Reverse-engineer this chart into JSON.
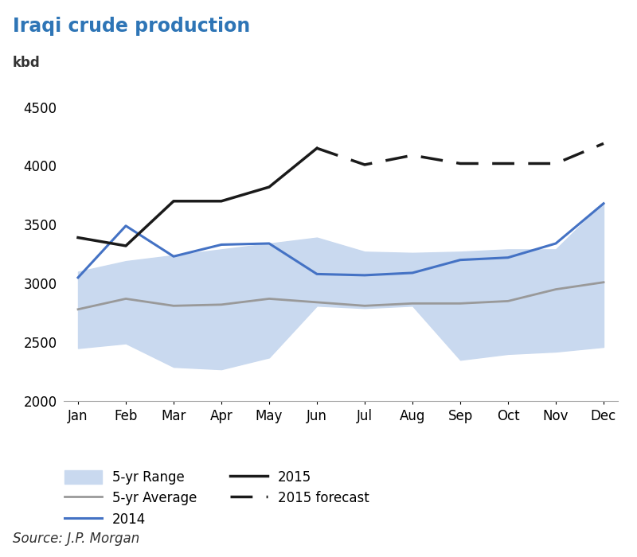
{
  "title": "Iraqi crude production",
  "ylabel": "kbd",
  "source": "Source: J.P. Morgan",
  "months": [
    "Jan",
    "Feb",
    "Mar",
    "Apr",
    "May",
    "Jun",
    "Jul",
    "Aug",
    "Sep",
    "Oct",
    "Nov",
    "Dec"
  ],
  "ylim": [
    2000,
    4700
  ],
  "yticks": [
    2000,
    2500,
    3000,
    3500,
    4000,
    4500
  ],
  "range_low": [
    2450,
    2490,
    2290,
    2270,
    2370,
    2810,
    2790,
    2810,
    2350,
    2400,
    2420,
    2460
  ],
  "range_high": [
    3100,
    3190,
    3240,
    3290,
    3340,
    3390,
    3270,
    3260,
    3270,
    3290,
    3290,
    3690
  ],
  "avg_5yr": [
    2780,
    2870,
    2810,
    2820,
    2870,
    2840,
    2810,
    2830,
    2830,
    2850,
    2950,
    3010
  ],
  "data_2014": [
    3050,
    3490,
    3230,
    3330,
    3340,
    3080,
    3070,
    3090,
    3200,
    3220,
    3340,
    3680
  ],
  "data_2015_solid": [
    3390,
    3320,
    3700,
    3700,
    3820,
    4150,
    null,
    null,
    null,
    null,
    null,
    null
  ],
  "data_2015_forecast": [
    null,
    null,
    null,
    null,
    null,
    4150,
    4010,
    4090,
    4020,
    4020,
    4020,
    4190
  ],
  "color_range_fill": "#c9d9ef",
  "color_avg": "#999999",
  "color_2014": "#4472c4",
  "color_2015": "#1a1a1a",
  "color_forecast": "#1a1a1a",
  "title_color": "#2e75b6",
  "text_color": "#333333",
  "background_color": "#ffffff",
  "title_fontsize": 17,
  "label_fontsize": 12,
  "tick_fontsize": 12,
  "source_fontsize": 12,
  "spine_color": "#aaaaaa"
}
